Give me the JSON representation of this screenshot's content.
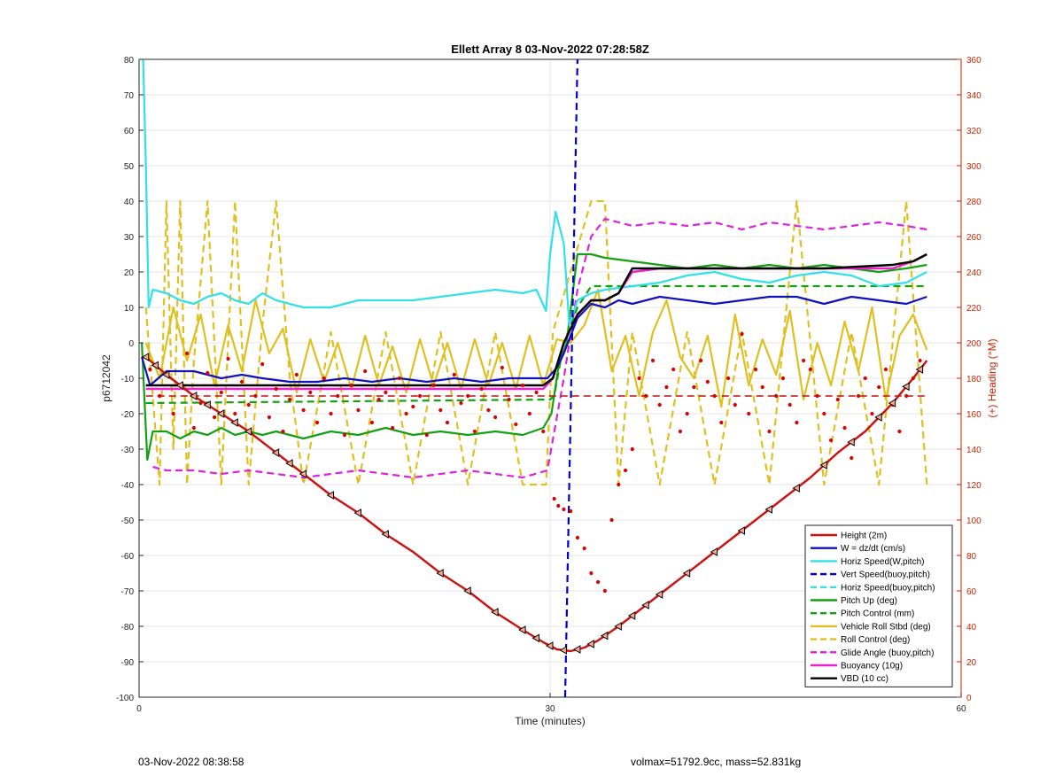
{
  "footer": {
    "timestamp": "03-Nov-2022 08:38:58",
    "vehicle_stats": "volmax=51792.9cc, mass=52.831kg"
  },
  "chart_data": {
    "type": "line",
    "title": "Ellett Array 8 03-Nov-2022 07:28:58Z",
    "xlabel": "Time (minutes)",
    "ylabel_left": "p6712042",
    "ylabel_right": "(+) Heading (°M)",
    "xlim": [
      0,
      60
    ],
    "ylim_left": [
      -100,
      80
    ],
    "ylim_right": [
      0,
      360
    ],
    "xticks": [
      0,
      30,
      60
    ],
    "yticks_left": [
      -100,
      -90,
      -80,
      -70,
      -60,
      -50,
      -40,
      -30,
      -20,
      -10,
      0,
      10,
      20,
      30,
      40,
      50,
      60,
      70,
      80
    ],
    "yticks_right": [
      0,
      20,
      40,
      60,
      80,
      100,
      120,
      140,
      160,
      180,
      200,
      220,
      240,
      260,
      280,
      300,
      320,
      340,
      360
    ],
    "grid": true,
    "legend_position": "bottom-right",
    "colors": {
      "height": "#cc1111",
      "w": "#1111bb",
      "horiz": "#33e0e8",
      "vert_buoy": "#0000cc",
      "pitch": "#14a014",
      "roll": "#e0c020",
      "glide": "#dd22dd",
      "buoyancy": "#ee22cc",
      "vbd": "#000000",
      "heading": "#dd0000",
      "heading_mean": "#bb1111",
      "right_axis": "#cc2200"
    },
    "series": [
      {
        "name": "Height (2m)",
        "key": "height",
        "style": "solid",
        "x": [
          0.5,
          2,
          4,
          6,
          8,
          10,
          12,
          14,
          16,
          18,
          20,
          22,
          24,
          26,
          28,
          29.5,
          30.5,
          31.5,
          32.5,
          33.5,
          35,
          37,
          39,
          41,
          43,
          45,
          47,
          49,
          51,
          53,
          55,
          56.5,
          57.5
        ],
        "y": [
          -4,
          -9,
          -15,
          -20,
          -25,
          -31,
          -37,
          -43,
          -48,
          -54,
          -59,
          -65,
          -70,
          -76,
          -81,
          -84.5,
          -86.5,
          -87,
          -86,
          -84,
          -80,
          -74,
          -68,
          -62,
          -56,
          -50,
          -44,
          -38,
          -31,
          -25,
          -17,
          -10,
          -5
        ]
      },
      {
        "name": "W = dz/dt (cm/s)",
        "key": "w",
        "style": "solid",
        "x": [
          0.2,
          0.8,
          2,
          4,
          6,
          7.5,
          9,
          11,
          13,
          15,
          17,
          19,
          21,
          23,
          25,
          27,
          29,
          29.8,
          30.5,
          31,
          32,
          33,
          34,
          35,
          36,
          38,
          40,
          42,
          44,
          46,
          48,
          50,
          52,
          54,
          56,
          57.5
        ],
        "y": [
          -4,
          -12,
          -8,
          -8,
          -10,
          -9,
          -10,
          -11,
          -11,
          -10,
          -11,
          -10,
          -11,
          -10,
          -11,
          -10,
          -10,
          -10,
          -7,
          -3,
          7,
          11,
          10,
          12,
          11,
          13,
          12,
          11,
          12,
          13,
          13,
          11,
          13,
          12,
          11,
          13
        ]
      },
      {
        "name": "Horiz Speed(W,pitch)",
        "key": "horiz",
        "style": "solid",
        "x": [
          0.3,
          0.5,
          0.7,
          1,
          2,
          3,
          4,
          5,
          6,
          7,
          8,
          9,
          10,
          11,
          12,
          13,
          14,
          16,
          18,
          20,
          22,
          24,
          26,
          28,
          29,
          29.7,
          30,
          30.4,
          31,
          31.4,
          32,
          33,
          34,
          36,
          38,
          40,
          42,
          44,
          46,
          48,
          50,
          52,
          54,
          56,
          57.5
        ],
        "y": [
          80,
          50,
          10,
          15,
          14,
          12,
          11,
          13,
          14,
          12,
          11,
          14,
          12,
          11,
          10,
          10,
          10,
          12,
          12,
          12,
          13,
          14,
          15,
          14,
          15,
          9,
          25,
          37,
          28,
          5,
          12,
          14,
          15,
          16,
          17,
          19,
          20,
          18,
          17,
          19,
          20,
          19,
          16,
          17,
          20
        ]
      },
      {
        "name": "Vert Speed(buoy,pitch)",
        "key": "vert_buoy",
        "style": "dashed",
        "x": [
          31.1,
          32.0
        ],
        "y": [
          -100,
          80
        ]
      },
      {
        "name": "Horiz Speed(buoy,pitch)",
        "key": "horiz",
        "style": "dashed",
        "x": [],
        "y": []
      },
      {
        "name": "Pitch Up (deg)",
        "key": "pitch",
        "style": "solid",
        "x": [
          0.2,
          0.6,
          1,
          2,
          3,
          4,
          5,
          6,
          7,
          8,
          9,
          10,
          12,
          14,
          16,
          18,
          20,
          22,
          24,
          26,
          28,
          29.5,
          30.1,
          30.6,
          31.2,
          32,
          33,
          34,
          36,
          38,
          40,
          42,
          44,
          46,
          48,
          50,
          52,
          54,
          56,
          57.5
        ],
        "y": [
          0,
          -33,
          -25,
          -25,
          -27,
          -25,
          -26,
          -24,
          -26,
          -25,
          -26,
          -25,
          -27,
          -25,
          -26,
          -24,
          -26,
          -25,
          -26,
          -25,
          -26,
          -24,
          -20,
          -7,
          0,
          25,
          25,
          24,
          23,
          22,
          21,
          22,
          21,
          22,
          21,
          22,
          21,
          20,
          21,
          22
        ]
      },
      {
        "name": "Pitch Control (mm)",
        "key": "pitch",
        "style": "dashed",
        "x": [
          0.5,
          30,
          30.3,
          31,
          32,
          33,
          35,
          57.5
        ],
        "y": [
          -17,
          -16,
          -15,
          0,
          10,
          16,
          16,
          16
        ]
      },
      {
        "name": "Vehicle Roll Stbd (deg)",
        "key": "roll",
        "style": "solid",
        "x": [
          0.5,
          1.5,
          2.5,
          3.5,
          4.5,
          5.5,
          6.5,
          7.5,
          8.5,
          9.5,
          10.5,
          11.5,
          12.5,
          13.5,
          14.5,
          15.5,
          16.5,
          17.5,
          18.5,
          19.5,
          20.5,
          21.5,
          22.5,
          23.5,
          24.5,
          25.5,
          26.5,
          27.5,
          28.5,
          29.5,
          30.5,
          31.5,
          32.5,
          33.5,
          34.5,
          35.5,
          36.5,
          37.5,
          38.5,
          39.5,
          40.5,
          41.5,
          42.5,
          43.5,
          44.5,
          45.5,
          46.5,
          47.5,
          48.5,
          49.5,
          50.5,
          51.5,
          52.5,
          53.5,
          54.5,
          55.5,
          56.5,
          57.5
        ],
        "y": [
          0,
          -10,
          10,
          -5,
          8,
          -12,
          5,
          -8,
          12,
          -3,
          4,
          -14,
          1,
          -11,
          0,
          -13,
          2,
          -12,
          -1,
          -14,
          1,
          -12,
          0,
          -13,
          1,
          -12,
          0,
          -13,
          2,
          -12,
          1,
          0,
          5,
          15,
          -8,
          2,
          -15,
          3,
          12,
          -4,
          -10,
          2,
          -18,
          8,
          -12,
          1,
          -9,
          9,
          -16,
          0,
          -12,
          6,
          -8,
          10,
          -16,
          2,
          8,
          -2
        ]
      },
      {
        "name": "Roll Control (deg)",
        "key": "roll",
        "style": "dashed",
        "x": [
          0.5,
          1.5,
          2,
          2.5,
          3,
          3.5,
          4,
          5,
          6,
          7,
          8,
          9,
          10,
          11,
          12,
          14,
          16,
          18,
          20,
          22,
          24,
          26,
          28,
          29.7,
          30.2,
          33,
          34,
          35,
          36,
          38,
          40,
          42,
          44,
          46,
          48,
          50,
          52,
          54,
          56,
          57.5
        ],
        "y": [
          10,
          -40,
          40,
          -30,
          40,
          -40,
          -5,
          40,
          -40,
          40,
          -40,
          5,
          40,
          -10,
          -40,
          3,
          -40,
          3,
          -40,
          3,
          -40,
          3,
          -40,
          -40,
          3,
          40,
          40,
          -40,
          3,
          -40,
          3,
          -40,
          3,
          -40,
          40,
          -40,
          3,
          -40,
          40,
          -40
        ]
      },
      {
        "name": "Glide Angle (buoy,pitch)",
        "key": "glide",
        "style": "dashed",
        "x": [
          1,
          2,
          4,
          6,
          8,
          10,
          12,
          14,
          16,
          18,
          20,
          22,
          24,
          26,
          28,
          29.8,
          31,
          32,
          33,
          34,
          36,
          38,
          40,
          42,
          44,
          46,
          48,
          50,
          52,
          54,
          56,
          57.5
        ],
        "y": [
          -35,
          -36,
          -36,
          -37,
          -36,
          -37,
          -38,
          -37,
          -36,
          -37,
          -38,
          -37,
          -36,
          -37,
          -38,
          -36,
          -10,
          15,
          30,
          35,
          33,
          34,
          33,
          34,
          32,
          34,
          33,
          32,
          33,
          34,
          33,
          32
        ]
      },
      {
        "name": "Buoyancy (10g)",
        "key": "buoyancy",
        "style": "solid",
        "x": [
          0.5,
          29.5,
          30.2,
          31,
          32,
          33,
          34,
          35,
          36,
          38,
          40,
          45,
          50,
          55,
          56.5,
          57.5
        ],
        "y": [
          -13,
          -13,
          -10,
          0,
          8,
          12,
          12,
          14,
          20,
          21,
          21,
          21,
          21,
          21,
          23,
          25
        ]
      },
      {
        "name": "VBD (10 cc)",
        "key": "vbd",
        "style": "solid",
        "x": [
          0.5,
          1.5,
          29.5,
          30.2,
          31,
          32,
          33,
          34,
          35,
          36,
          38,
          40,
          45,
          50,
          55,
          56.5,
          57.5
        ],
        "y": [
          -12,
          -12,
          -12,
          -10,
          0,
          8,
          12,
          12,
          14,
          21,
          21,
          21,
          21,
          21,
          22,
          23,
          25
        ]
      }
    ],
    "heading_points": {
      "name": "Heading",
      "axis": "right",
      "x": [
        0.8,
        1.5,
        2,
        2.5,
        3,
        3.5,
        4,
        4.5,
        5,
        5.5,
        6,
        6.5,
        7,
        7.5,
        8,
        8.5,
        9,
        9.5,
        10,
        10.5,
        11,
        11.5,
        12,
        12.5,
        13,
        13.5,
        14,
        14.5,
        15,
        15.5,
        16,
        16.5,
        17,
        17.5,
        18,
        18.5,
        19,
        19.5,
        20,
        20.5,
        21,
        21.5,
        22,
        22.5,
        23,
        23.5,
        24,
        24.5,
        25,
        25.5,
        26,
        26.5,
        27,
        27.5,
        28,
        28.5,
        29,
        29.5,
        30.3,
        30.6,
        31,
        31.5,
        32,
        32.5,
        33,
        33.5,
        34,
        34.5,
        35,
        35.5,
        36,
        36.5,
        37,
        37.5,
        38,
        38.5,
        39,
        39.5,
        40,
        40.5,
        41,
        41.5,
        42,
        42.5,
        43,
        43.5,
        44,
        44.5,
        45,
        45.5,
        46,
        46.5,
        47,
        47.5,
        48,
        48.5,
        49,
        49.5,
        50,
        50.5,
        51,
        51.5,
        52,
        52.5,
        53,
        53.5,
        54,
        54.5,
        55,
        55.5,
        56,
        56.5,
        57
      ],
      "y": [
        185,
        170,
        182,
        160,
        176,
        194,
        152,
        166,
        183,
        158,
        172,
        191,
        160,
        178,
        165,
        170,
        188,
        158,
        174,
        150,
        168,
        182,
        162,
        172,
        155,
        180,
        160,
        170,
        148,
        176,
        162,
        184,
        155,
        168,
        172,
        152,
        180,
        160,
        164,
        170,
        148,
        176,
        162,
        155,
        182,
        166,
        170,
        150,
        174,
        162,
        158,
        186,
        168,
        154,
        176,
        160,
        172,
        150,
        112,
        108,
        106,
        105,
        90,
        84,
        70,
        65,
        60,
        100,
        120,
        128,
        140,
        180,
        170,
        190,
        165,
        175,
        185,
        150,
        160,
        175,
        190,
        178,
        170,
        155,
        180,
        165,
        205,
        160,
        185,
        175,
        150,
        170,
        180,
        165,
        155,
        190,
        185,
        170,
        160,
        145,
        168,
        152,
        135,
        170,
        180,
        160,
        175,
        185,
        165,
        150,
        170,
        180,
        190
      ]
    },
    "heading_mean_line": {
      "value": 170,
      "axis": "right"
    },
    "triangle_markers_x": [
      0.5,
      1.2,
      2,
      3,
      4,
      5,
      6,
      7,
      8,
      10,
      11,
      12,
      14,
      16,
      18,
      22,
      24,
      26,
      28,
      29,
      30,
      31,
      32,
      33,
      34,
      35,
      36,
      37,
      38,
      40,
      42,
      44,
      46,
      48,
      50,
      52,
      54,
      55,
      56,
      57
    ]
  }
}
